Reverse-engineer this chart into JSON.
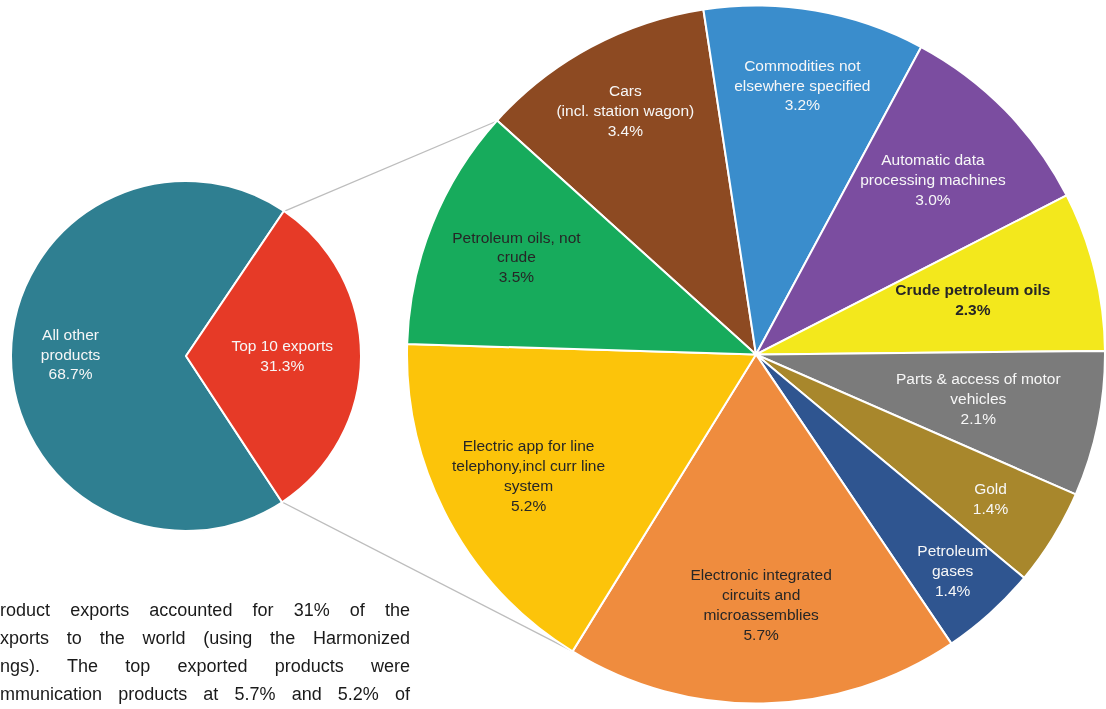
{
  "chart_data": [
    {
      "type": "pie",
      "categories": [
        "All other products",
        "Top 10 exports"
      ],
      "values": [
        68.7,
        31.3
      ],
      "colors": [
        "#2f7f91",
        "#e63a27"
      ],
      "value_labels": [
        "68.7%",
        "31.3%"
      ],
      "annotations": [
        "roduct exports accounted for 31% of the",
        "xports to the world (using the Harmonized",
        "ngs). The top exported products were",
        "mmunication products at 5.7% and 5.2% of"
      ]
    },
    {
      "type": "pie",
      "categories": [
        "Cars (incl. station wagon)",
        "Commodities not elsewhere specified",
        "Automatic data processing machines",
        "Crude petroleum oils",
        "Parts & access of motor vehicles",
        "Gold",
        "Petroleum gases",
        "Electronic integrated circuits and microassemblies",
        "Electric app for line telephony,incl curr line system",
        "Petroleum oils, not crude"
      ],
      "values": [
        3.4,
        3.2,
        3.0,
        2.3,
        2.1,
        1.4,
        1.4,
        5.7,
        5.2,
        3.5
      ],
      "colors": [
        "#8d4a22",
        "#3a8dcc",
        "#7b4da0",
        "#f3e81c",
        "#7b7b7b",
        "#a8872c",
        "#2f5590",
        "#ef8c3e",
        "#fcc40a",
        "#17ab5c"
      ],
      "value_labels": [
        "3.4%",
        "3.2%",
        "3.0%",
        "2.3%",
        "2.1%",
        "1.4%",
        "1.4%",
        "5.7%",
        "5.2%",
        "3.5%"
      ]
    }
  ]
}
